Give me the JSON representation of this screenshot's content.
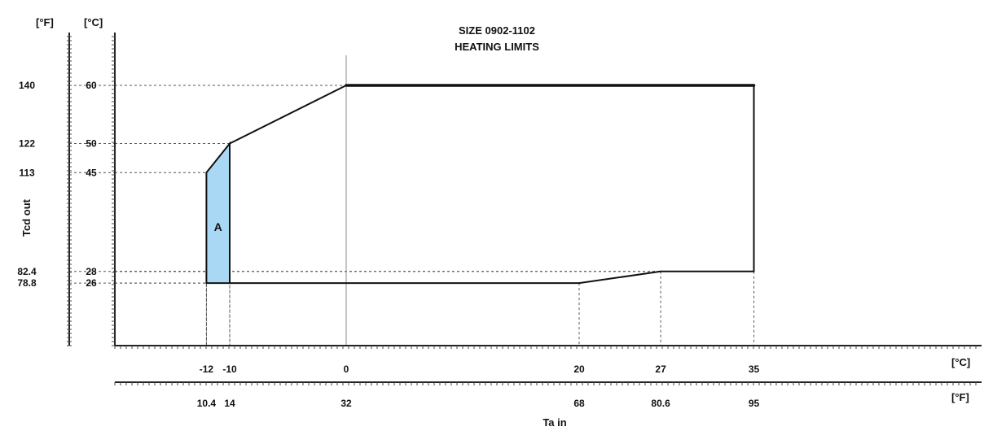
{
  "chart_data": {
    "type": "area",
    "title": "SIZE 0902-1102",
    "subtitle": "HEATING LIMITS",
    "xlabel": "Ta in",
    "ylabel": "Tcd out",
    "x_unit_c": "[°C]",
    "x_unit_f": "[°F]",
    "y_unit_c": "[°C]",
    "y_unit_f": "[°F]",
    "xlim_c": [
      -18,
      42
    ],
    "ylim_c": [
      5,
      66
    ],
    "x_ticks": [
      {
        "c": -12,
        "c_label": "-12",
        "f_label": "10.4"
      },
      {
        "c": -10,
        "c_label": "-10",
        "f_label": "14"
      },
      {
        "c": 0,
        "c_label": "0",
        "f_label": "32"
      },
      {
        "c": 20,
        "c_label": "20",
        "f_label": "68"
      },
      {
        "c": 27,
        "c_label": "27",
        "f_label": "80.6"
      },
      {
        "c": 35,
        "c_label": "35",
        "f_label": "95"
      }
    ],
    "y_ticks": [
      {
        "c": 60,
        "c_label": "60",
        "f_label": "140"
      },
      {
        "c": 50,
        "c_label": "50",
        "f_label": "122"
      },
      {
        "c": 45,
        "c_label": "45",
        "f_label": "113"
      },
      {
        "c": 28,
        "c_label": "28",
        "f_label": "82.4"
      },
      {
        "c": 26,
        "c_label": "26",
        "f_label": "78.8"
      }
    ],
    "envelope": [
      [
        -10,
        50
      ],
      [
        0,
        60
      ],
      [
        35,
        60
      ],
      [
        35,
        28
      ],
      [
        27,
        28
      ],
      [
        20,
        26
      ],
      [
        -10,
        26
      ]
    ],
    "region_a": {
      "label": "A",
      "points": [
        [
          -12,
          26
        ],
        [
          -12,
          45
        ],
        [
          -10,
          50
        ],
        [
          -10,
          26
        ]
      ],
      "color": "#a9d8f5"
    },
    "guides": [
      {
        "x": -12,
        "y": 45
      },
      {
        "x": -10,
        "y": 50
      },
      {
        "x": 0,
        "y": 60
      },
      {
        "x": -10,
        "y": 28
      },
      {
        "x": -12,
        "y": 26
      },
      {
        "x": 20,
        "y": 26
      },
      {
        "x": 27,
        "y": 28
      },
      {
        "x": 35,
        "y": 28
      }
    ],
    "grid": false,
    "line_color": "#111111"
  }
}
